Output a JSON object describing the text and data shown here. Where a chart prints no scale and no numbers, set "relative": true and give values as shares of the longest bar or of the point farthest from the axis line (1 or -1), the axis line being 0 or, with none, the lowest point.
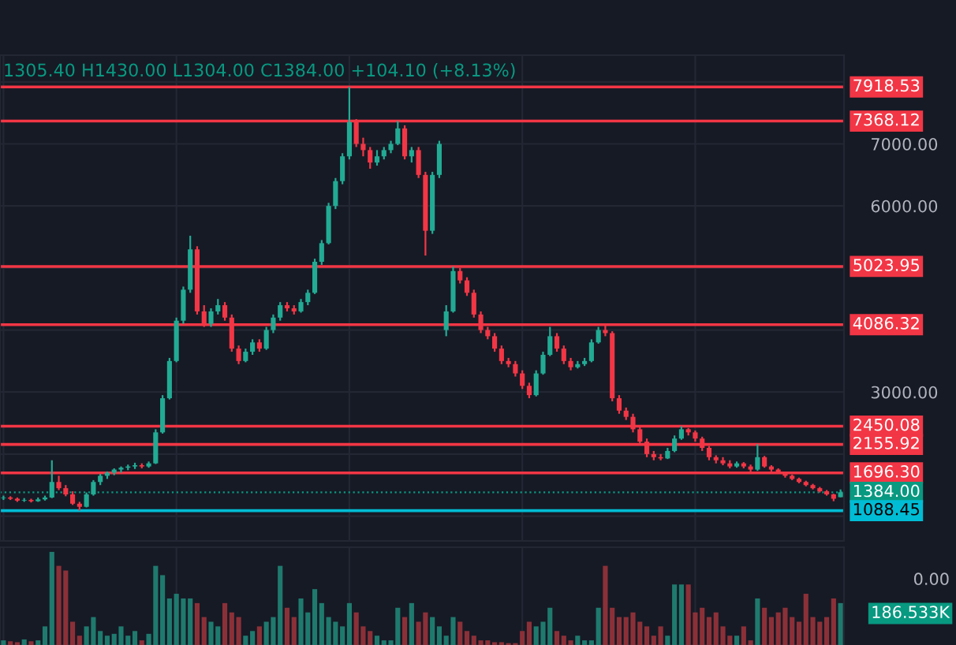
{
  "chart_data": [
    {
      "type": "candlestick",
      "categories": [
        null,
        null,
        null,
        null,
        null,
        null,
        null,
        null,
        null,
        null,
        null,
        null,
        null,
        null,
        null,
        null,
        null,
        null,
        null,
        null,
        null,
        null,
        null,
        null,
        null,
        null,
        null,
        null,
        null,
        null,
        null,
        null,
        null,
        null,
        null,
        null,
        null,
        null,
        null,
        null,
        null,
        null,
        null,
        null,
        null,
        null,
        null,
        null,
        null,
        null,
        null,
        null,
        null,
        null,
        null,
        null,
        null,
        null,
        null,
        null,
        null,
        null,
        null,
        null,
        null,
        null,
        null,
        null,
        null,
        null,
        null,
        null,
        null,
        null,
        null,
        null,
        null,
        null,
        null,
        null,
        null,
        null,
        null,
        null,
        null,
        null,
        null,
        null,
        null,
        null,
        null,
        null,
        null,
        null,
        null,
        null,
        null,
        null,
        null,
        null,
        null,
        null,
        null,
        null,
        null,
        null,
        null,
        null,
        null,
        null,
        null,
        null,
        null,
        null,
        null,
        null,
        null,
        null,
        null,
        null,
        null,
        null
      ],
      "ohlc": [
        [
          1290,
          1330,
          1260,
          1300
        ],
        [
          1300,
          1320,
          1260,
          1280
        ],
        [
          1280,
          1300,
          1230,
          1250
        ],
        [
          1250,
          1290,
          1230,
          1260
        ],
        [
          1260,
          1280,
          1220,
          1240
        ],
        [
          1240,
          1300,
          1230,
          1270
        ],
        [
          1270,
          1330,
          1250,
          1300
        ],
        [
          1300,
          1900,
          1290,
          1550
        ],
        [
          1550,
          1650,
          1420,
          1450
        ],
        [
          1450,
          1500,
          1320,
          1350
        ],
        [
          1350,
          1400,
          1180,
          1200
        ],
        [
          1200,
          1230,
          1090,
          1150
        ],
        [
          1150,
          1380,
          1140,
          1350
        ],
        [
          1350,
          1580,
          1330,
          1550
        ],
        [
          1550,
          1680,
          1500,
          1650
        ],
        [
          1650,
          1720,
          1600,
          1700
        ],
        [
          1700,
          1770,
          1660,
          1750
        ],
        [
          1750,
          1800,
          1700,
          1780
        ],
        [
          1780,
          1830,
          1740,
          1800
        ],
        [
          1800,
          1860,
          1760,
          1820
        ],
        [
          1820,
          1850,
          1770,
          1800
        ],
        [
          1800,
          1880,
          1780,
          1850
        ],
        [
          1850,
          2400,
          1840,
          2350
        ],
        [
          2350,
          2950,
          2330,
          2900
        ],
        [
          2900,
          3550,
          2880,
          3500
        ],
        [
          3500,
          4200,
          3480,
          4150
        ],
        [
          4150,
          4700,
          4100,
          4650
        ],
        [
          4650,
          5520,
          4600,
          5300
        ],
        [
          5300,
          5350,
          4250,
          4300
        ],
        [
          4300,
          4400,
          4050,
          4100
        ],
        [
          4100,
          4350,
          4050,
          4300
        ],
        [
          4300,
          4500,
          4250,
          4400
        ],
        [
          4400,
          4450,
          4150,
          4200
        ],
        [
          4200,
          4250,
          3650,
          3700
        ],
        [
          3700,
          3750,
          3450,
          3500
        ],
        [
          3500,
          3700,
          3480,
          3650
        ],
        [
          3650,
          3850,
          3600,
          3800
        ],
        [
          3800,
          3850,
          3650,
          3700
        ],
        [
          3700,
          4050,
          3680,
          4000
        ],
        [
          4000,
          4250,
          3950,
          4200
        ],
        [
          4200,
          4450,
          4150,
          4400
        ],
        [
          4400,
          4450,
          4300,
          4350
        ],
        [
          4350,
          4400,
          4250,
          4300
        ],
        [
          4300,
          4500,
          4280,
          4450
        ],
        [
          4450,
          4650,
          4400,
          4600
        ],
        [
          4600,
          5150,
          4580,
          5100
        ],
        [
          5100,
          5450,
          5050,
          5400
        ],
        [
          5400,
          6050,
          5380,
          6000
        ],
        [
          6000,
          6450,
          5950,
          6400
        ],
        [
          6400,
          6850,
          6350,
          6800
        ],
        [
          6800,
          7920,
          6750,
          7350
        ],
        [
          7350,
          7400,
          6950,
          7000
        ],
        [
          7000,
          7100,
          6800,
          6900
        ],
        [
          6900,
          6950,
          6600,
          6700
        ],
        [
          6700,
          6900,
          6650,
          6800
        ],
        [
          6800,
          6950,
          6750,
          6900
        ],
        [
          6900,
          7050,
          6850,
          7000
        ],
        [
          7000,
          7370,
          6980,
          7250
        ],
        [
          7250,
          7300,
          6750,
          6800
        ],
        [
          6800,
          6950,
          6700,
          6900
        ],
        [
          6900,
          6950,
          6450,
          6500
        ],
        [
          6500,
          6550,
          5200,
          5600
        ],
        [
          5600,
          6550,
          5550,
          6500
        ],
        [
          6500,
          7050,
          6450,
          7000
        ],
        [
          4000,
          4400,
          3900,
          4300
        ],
        [
          4300,
          5020,
          4280,
          4950
        ],
        [
          4950,
          5000,
          4750,
          4800
        ],
        [
          4800,
          4850,
          4550,
          4600
        ],
        [
          4600,
          4650,
          4200,
          4250
        ],
        [
          4250,
          4300,
          3950,
          4000
        ],
        [
          4000,
          4050,
          3850,
          3900
        ],
        [
          3900,
          3950,
          3650,
          3700
        ],
        [
          3700,
          3750,
          3450,
          3500
        ],
        [
          3500,
          3550,
          3400,
          3450
        ],
        [
          3450,
          3500,
          3250,
          3300
        ],
        [
          3300,
          3350,
          3050,
          3100
        ],
        [
          3100,
          3150,
          2900,
          2950
        ],
        [
          2950,
          3350,
          2930,
          3300
        ],
        [
          3300,
          3650,
          3280,
          3600
        ],
        [
          3600,
          4050,
          3580,
          3900
        ],
        [
          3900,
          3950,
          3650,
          3700
        ],
        [
          3700,
          3750,
          3450,
          3500
        ],
        [
          3500,
          3550,
          3350,
          3400
        ],
        [
          3400,
          3500,
          3380,
          3450
        ],
        [
          3450,
          3550,
          3420,
          3500
        ],
        [
          3500,
          3850,
          3480,
          3800
        ],
        [
          3800,
          4050,
          3780,
          4000
        ],
        [
          4000,
          4090,
          3900,
          3950
        ],
        [
          3950,
          3980,
          2850,
          2900
        ],
        [
          2900,
          2950,
          2650,
          2700
        ],
        [
          2700,
          2750,
          2550,
          2600
        ],
        [
          2600,
          2650,
          2350,
          2400
        ],
        [
          2400,
          2450,
          2150,
          2200
        ],
        [
          2200,
          2250,
          1950,
          2000
        ],
        [
          2000,
          2050,
          1900,
          1950
        ],
        [
          1950,
          2000,
          1900,
          1930
        ],
        [
          1930,
          2100,
          1920,
          2050
        ],
        [
          2050,
          2300,
          2030,
          2250
        ],
        [
          2250,
          2450,
          2230,
          2400
        ],
        [
          2400,
          2420,
          2300,
          2350
        ],
        [
          2350,
          2380,
          2200,
          2250
        ],
        [
          2250,
          2280,
          2050,
          2100
        ],
        [
          2100,
          2130,
          1900,
          1950
        ],
        [
          1950,
          1980,
          1850,
          1900
        ],
        [
          1900,
          1950,
          1820,
          1850
        ],
        [
          1850,
          1900,
          1770,
          1800
        ],
        [
          1800,
          1880,
          1780,
          1850
        ],
        [
          1850,
          1870,
          1770,
          1800
        ],
        [
          1800,
          1830,
          1700,
          1750
        ],
        [
          1750,
          2160,
          1730,
          1950
        ],
        [
          1950,
          1970,
          1780,
          1800
        ],
        [
          1800,
          1820,
          1720,
          1750
        ],
        [
          1750,
          1770,
          1680,
          1700
        ],
        [
          1700,
          1700,
          1620,
          1650
        ],
        [
          1650,
          1670,
          1580,
          1600
        ],
        [
          1600,
          1620,
          1530,
          1550
        ],
        [
          1550,
          1570,
          1480,
          1500
        ],
        [
          1500,
          1520,
          1430,
          1450
        ],
        [
          1450,
          1470,
          1380,
          1400
        ],
        [
          1400,
          1420,
          1330,
          1350
        ],
        [
          1350,
          1360,
          1240,
          1280
        ],
        [
          1305.4,
          1430,
          1304,
          1384
        ]
      ],
      "colors": [
        "#22ab94",
        "#f23645",
        "#f23645",
        "#22ab94",
        "#f23645",
        "#22ab94",
        "#22ab94",
        "#22ab94",
        "#f23645",
        "#f23645",
        "#f23645",
        "#f23645",
        "#22ab94",
        "#22ab94",
        "#22ab94",
        "#22ab94",
        "#22ab94",
        "#22ab94",
        "#22ab94",
        "#22ab94",
        "#f23645",
        "#22ab94",
        "#22ab94",
        "#22ab94",
        "#22ab94",
        "#22ab94",
        "#22ab94",
        "#22ab94",
        "#f23645",
        "#f23645",
        "#22ab94",
        "#22ab94",
        "#f23645",
        "#f23645",
        "#f23645",
        "#22ab94",
        "#22ab94",
        "#f23645",
        "#22ab94",
        "#22ab94",
        "#22ab94",
        "#f23645",
        "#f23645",
        "#22ab94",
        "#22ab94",
        "#22ab94",
        "#22ab94",
        "#22ab94",
        "#22ab94",
        "#22ab94",
        "#22ab94",
        "#f23645",
        "#f23645",
        "#f23645",
        "#22ab94",
        "#22ab94",
        "#22ab94",
        "#22ab94",
        "#f23645",
        "#22ab94",
        "#f23645",
        "#f23645",
        "#22ab94",
        "#22ab94",
        "#22ab94",
        "#22ab94",
        "#f23645",
        "#f23645",
        "#f23645",
        "#f23645",
        "#f23645",
        "#f23645",
        "#f23645",
        "#f23645",
        "#f23645",
        "#f23645",
        "#f23645",
        "#22ab94",
        "#22ab94",
        "#22ab94",
        "#f23645",
        "#f23645",
        "#f23645",
        "#22ab94",
        "#22ab94",
        "#22ab94",
        "#22ab94",
        "#f23645",
        "#f23645",
        "#f23645",
        "#f23645",
        "#f23645",
        "#f23645",
        "#f23645",
        "#f23645",
        "#f23645",
        "#22ab94",
        "#22ab94",
        "#22ab94",
        "#f23645",
        "#f23645",
        "#f23645",
        "#f23645",
        "#f23645",
        "#f23645",
        "#f23645",
        "#22ab94",
        "#f23645",
        "#f23645",
        "#22ab94",
        "#f23645",
        "#f23645",
        "#f23645",
        "#f23645",
        "#f23645",
        "#f23645",
        "#f23645",
        "#f23645",
        "#f23645",
        "#f23645",
        "#f23645",
        "#22ab94"
      ],
      "ylim": [
        600,
        8430
      ],
      "yticks": [
        {
          "value": 1000,
          "label": null
        },
        {
          "value": 2000,
          "label": null
        },
        {
          "value": 3000,
          "label": "3000.00"
        },
        {
          "value": 4000,
          "label": null
        },
        {
          "value": 5000,
          "label": null
        },
        {
          "value": 6000,
          "label": "6000.00"
        },
        {
          "value": 7000,
          "label": "7000.00"
        },
        {
          "value": 8000,
          "label": null
        }
      ],
      "tick_labels": "y",
      "grid": true,
      "ref_lines": [
        {
          "axis": "y",
          "value": 7918.53,
          "label": "7918.53",
          "color": "#f23645",
          "line_style": "solid"
        },
        {
          "axis": "y",
          "value": 7368.12,
          "label": "7368.12",
          "color": "#f23645",
          "line_style": "solid"
        },
        {
          "axis": "y",
          "value": 5023.95,
          "label": "5023.95",
          "color": "#f23645",
          "line_style": "solid"
        },
        {
          "axis": "y",
          "value": 4086.32,
          "label": "4086.32",
          "color": "#f23645",
          "line_style": "solid"
        },
        {
          "axis": "y",
          "value": 2450.08,
          "label": "2450.08",
          "color": "#f23645",
          "line_style": "solid"
        },
        {
          "axis": "y",
          "value": 2155.92,
          "label": "2155.92",
          "color": "#f23645",
          "line_style": "solid"
        },
        {
          "axis": "y",
          "value": 1696.3,
          "label": "1696.30",
          "color": "#f23645",
          "line_style": "solid"
        },
        {
          "axis": "y",
          "value": 1384.0,
          "label": "1384.00",
          "color": "#089981",
          "line_style": "dotted"
        },
        {
          "axis": "y",
          "value": 1088.45,
          "label": "1088.45",
          "color": "#00bcd4",
          "line_style": "solid"
        }
      ],
      "annotations": [
        "1305.40 H1430.00 L1304.00 C1384.00 +104.10 (+8.13%)"
      ]
    },
    {
      "type": "bar",
      "relative": true,
      "tick_labels": false,
      "grid": true,
      "categories": [
        null,
        null,
        null,
        null,
        null,
        null,
        null,
        null,
        null,
        null,
        null,
        null,
        null,
        null,
        null,
        null,
        null,
        null,
        null,
        null,
        null,
        null,
        null,
        null,
        null,
        null,
        null,
        null,
        null,
        null,
        null,
        null,
        null,
        null,
        null,
        null,
        null,
        null,
        null,
        null,
        null,
        null,
        null,
        null,
        null,
        null,
        null,
        null,
        null,
        null,
        null,
        null,
        null,
        null,
        null,
        null,
        null,
        null,
        null,
        null,
        null,
        null,
        null,
        null,
        null,
        null,
        null,
        null,
        null,
        null,
        null,
        null,
        null,
        null,
        null,
        null,
        null,
        null,
        null,
        null,
        null,
        null,
        null,
        null,
        null,
        null,
        null,
        null,
        null,
        null,
        null,
        null,
        null,
        null,
        null,
        null,
        null,
        null,
        null,
        null,
        null,
        null,
        null,
        null,
        null,
        null,
        null,
        null,
        null,
        null,
        null,
        null,
        null,
        null,
        null,
        null,
        null,
        null,
        null,
        null,
        null,
        null
      ],
      "values": [
        0.05,
        0.04,
        0.03,
        0.06,
        0.04,
        0.05,
        0.2,
        1.0,
        0.85,
        0.8,
        0.25,
        0.1,
        0.2,
        0.3,
        0.15,
        0.1,
        0.12,
        0.2,
        0.1,
        0.15,
        0.05,
        0.12,
        0.85,
        0.75,
        0.5,
        0.55,
        0.5,
        0.5,
        0.45,
        0.3,
        0.25,
        0.2,
        0.45,
        0.35,
        0.3,
        0.1,
        0.15,
        0.2,
        0.25,
        0.3,
        0.85,
        0.4,
        0.3,
        0.5,
        0.35,
        0.6,
        0.45,
        0.3,
        0.25,
        0.2,
        0.45,
        0.35,
        0.2,
        0.15,
        0.1,
        0.05,
        0.05,
        0.4,
        0.3,
        0.45,
        0.25,
        0.35,
        0.3,
        0.2,
        0.1,
        0.3,
        0.25,
        0.15,
        0.1,
        0.05,
        0.05,
        0.03,
        0.03,
        0.02,
        0.02,
        0.15,
        0.25,
        0.2,
        0.25,
        0.4,
        0.15,
        0.1,
        0.05,
        0.1,
        0.05,
        0.05,
        0.4,
        0.85,
        0.4,
        0.3,
        0.3,
        0.35,
        0.25,
        0.2,
        0.1,
        0.2,
        0.1,
        0.65,
        0.65,
        0.65,
        0.35,
        0.4,
        0.3,
        0.35,
        0.2,
        0.1,
        0.1,
        0.2,
        0.05,
        0.5,
        0.4,
        0.3,
        0.35,
        0.4,
        0.3,
        0.25,
        0.55,
        0.3,
        0.25,
        0.3,
        0.5,
        0.45
      ],
      "colors": [
        "#1f7a6e",
        "#8c3038",
        "#8c3038",
        "#1f7a6e",
        "#8c3038",
        "#1f7a6e",
        "#1f7a6e",
        "#1f7a6e",
        "#8c3038",
        "#8c3038",
        "#8c3038",
        "#8c3038",
        "#1f7a6e",
        "#1f7a6e",
        "#1f7a6e",
        "#1f7a6e",
        "#1f7a6e",
        "#1f7a6e",
        "#1f7a6e",
        "#1f7a6e",
        "#8c3038",
        "#1f7a6e",
        "#1f7a6e",
        "#1f7a6e",
        "#1f7a6e",
        "#1f7a6e",
        "#1f7a6e",
        "#1f7a6e",
        "#8c3038",
        "#8c3038",
        "#1f7a6e",
        "#1f7a6e",
        "#8c3038",
        "#8c3038",
        "#8c3038",
        "#1f7a6e",
        "#1f7a6e",
        "#8c3038",
        "#1f7a6e",
        "#1f7a6e",
        "#1f7a6e",
        "#8c3038",
        "#8c3038",
        "#1f7a6e",
        "#1f7a6e",
        "#1f7a6e",
        "#1f7a6e",
        "#1f7a6e",
        "#1f7a6e",
        "#1f7a6e",
        "#1f7a6e",
        "#8c3038",
        "#8c3038",
        "#8c3038",
        "#1f7a6e",
        "#1f7a6e",
        "#1f7a6e",
        "#1f7a6e",
        "#8c3038",
        "#1f7a6e",
        "#8c3038",
        "#8c3038",
        "#1f7a6e",
        "#1f7a6e",
        "#1f7a6e",
        "#1f7a6e",
        "#8c3038",
        "#8c3038",
        "#8c3038",
        "#8c3038",
        "#8c3038",
        "#8c3038",
        "#8c3038",
        "#8c3038",
        "#8c3038",
        "#8c3038",
        "#8c3038",
        "#1f7a6e",
        "#1f7a6e",
        "#1f7a6e",
        "#8c3038",
        "#8c3038",
        "#8c3038",
        "#1f7a6e",
        "#1f7a6e",
        "#1f7a6e",
        "#1f7a6e",
        "#8c3038",
        "#8c3038",
        "#8c3038",
        "#8c3038",
        "#8c3038",
        "#8c3038",
        "#8c3038",
        "#8c3038",
        "#8c3038",
        "#1f7a6e",
        "#1f7a6e",
        "#1f7a6e",
        "#8c3038",
        "#8c3038",
        "#8c3038",
        "#8c3038",
        "#8c3038",
        "#8c3038",
        "#8c3038",
        "#1f7a6e",
        "#8c3038",
        "#8c3038",
        "#1f7a6e",
        "#8c3038",
        "#8c3038",
        "#8c3038",
        "#8c3038",
        "#8c3038",
        "#8c3038",
        "#8c3038",
        "#8c3038",
        "#8c3038",
        "#8c3038",
        "#8c3038",
        "#1f7a6e"
      ],
      "annotations": [
        "0.00",
        "186.533K"
      ]
    }
  ]
}
